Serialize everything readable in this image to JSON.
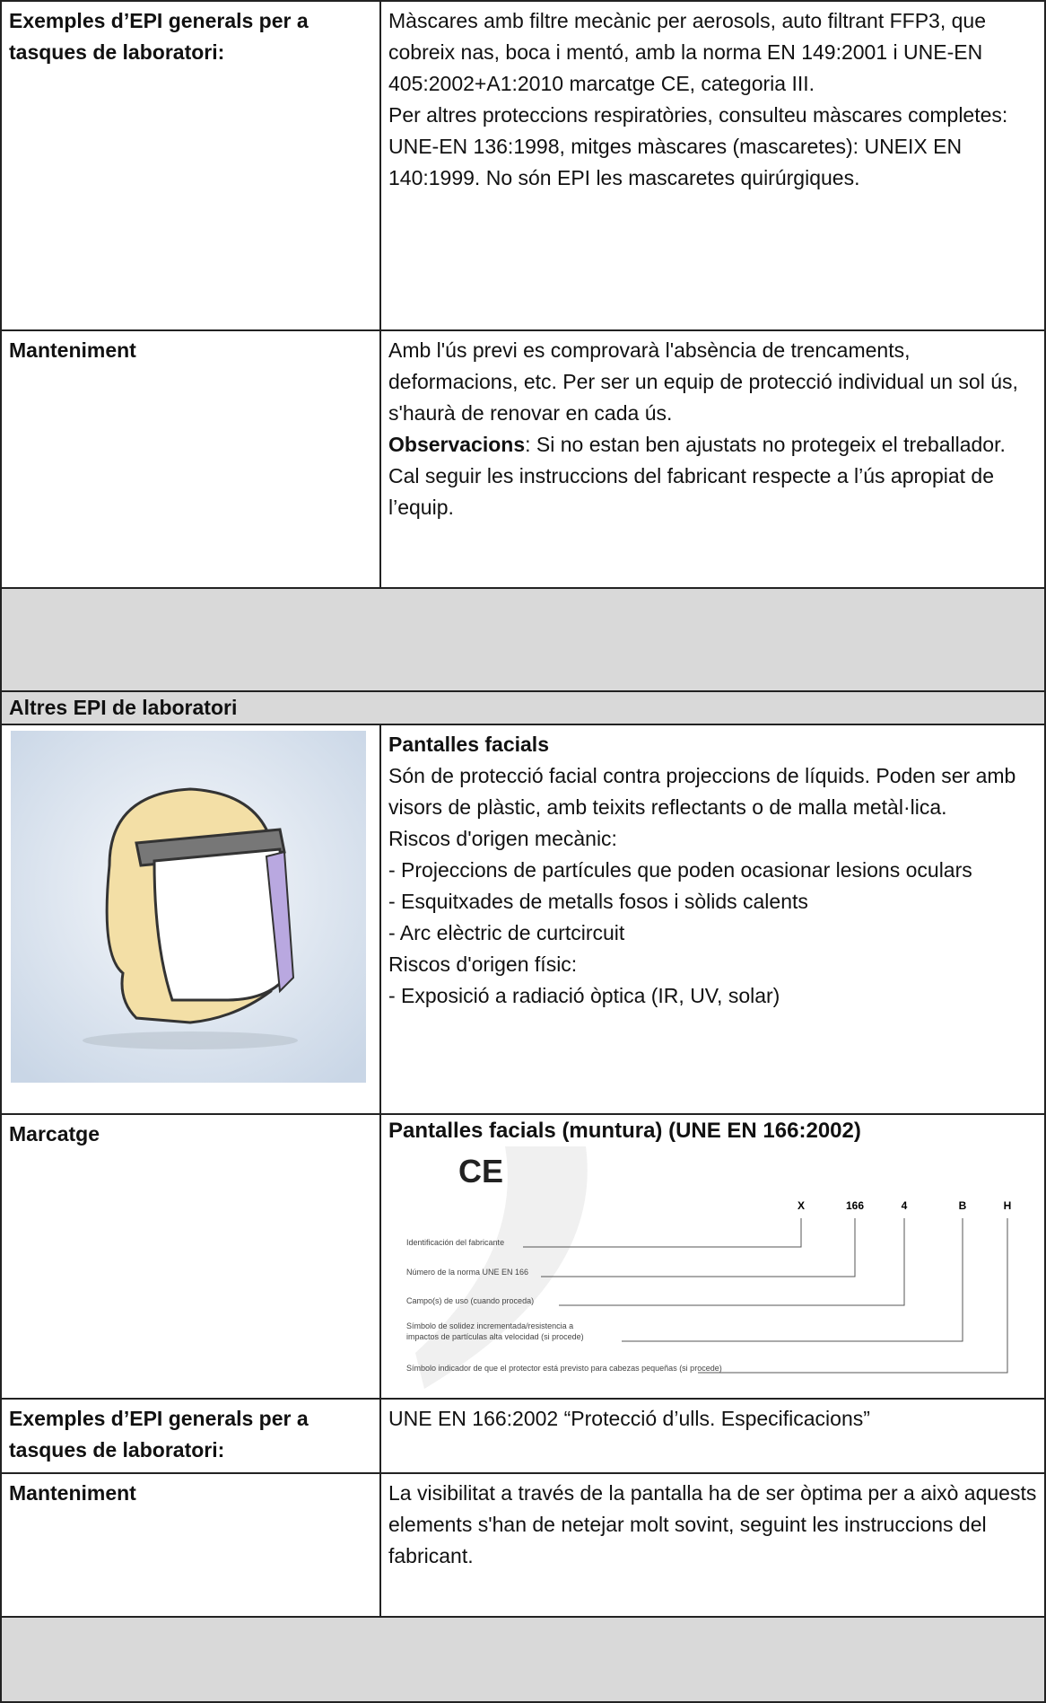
{
  "part1": {
    "rows": [
      {
        "label": "Exemples d’EPI generals per a  tasques de laboratori:",
        "lines": [
          "Màscares amb filtre mecànic per aerosols, auto filtrant FFP3, que cobreix nas, boca i mentó, amb la norma EN 149:2001 i UNE-EN 405:2002+A1:2010 marcatge CE, categoria III.",
          "Per altres proteccions respiratòries, consulteu màscares completes: UNE-EN 136:1998, mitges màscares (mascaretes): UNEIX EN 140:1999. No són EPI les mascaretes quirúrgiques."
        ]
      },
      {
        "label": "Manteniment",
        "lines": [
          "Amb l'ús previ es comprovarà l'absència de trencaments, deformacions, etc. Per ser un equip de protecció individual un sol ús, s'haurà de renovar en cada ús."
        ],
        "note_label": "Observacions",
        "note": ": Si no estan ben ajustats no protegeix el treballador. Cal seguir les instruccions del fabricant respecte a l’ús apropiat de l’equip."
      }
    ]
  },
  "part2": {
    "section": "Altres EPI de laboratori",
    "item": {
      "title": "Pantalles facials",
      "lines": [
        "Són de protecció facial contra projeccions de líquids. Poden ser amb visors de plàstic, amb teixits reflectants o de malla metàl·lica.",
        "Riscos d'origen mecànic:",
        "- Projeccions de partícules que poden ocasionar lesions oculars",
        "- Esquitxades de metalls fosos i sòlids calents",
        "- Arc elèctric de curtcircuit",
        "Riscos d'origen físic:",
        "- Exposició a radiació òptica (IR, UV, solar)"
      ]
    },
    "marking": {
      "label": "Marcatge",
      "title": "Pantalles facials (muntura) (UNE EN 166:2002)",
      "ce": "CE",
      "codes": [
        "X",
        "166",
        "4",
        "B",
        "H"
      ],
      "fields": [
        "Identificación del fabricante",
        "Número de la norma  UNE EN 166",
        "Campo(s) de uso (cuando proceda)",
        "Símbolo de solidez incrementada/resistencia a impactos de partículas alta velocidad (si procede)",
        "Símbolo indicador de que el protector está previsto para cabezas pequeñas (si procede)"
      ]
    },
    "rows": [
      {
        "label": "Exemples d’EPI generals per a  tasques de laboratori:",
        "text": "UNE EN 166:2002 “Protecció d’ulls. Especificacions”"
      },
      {
        "label": "Manteniment",
        "text": "La visibilitat a través de la pantalla ha de ser òptima per a això aquests elements s'han de netejar molt sovint, seguint les instruccions del fabricant."
      }
    ]
  }
}
